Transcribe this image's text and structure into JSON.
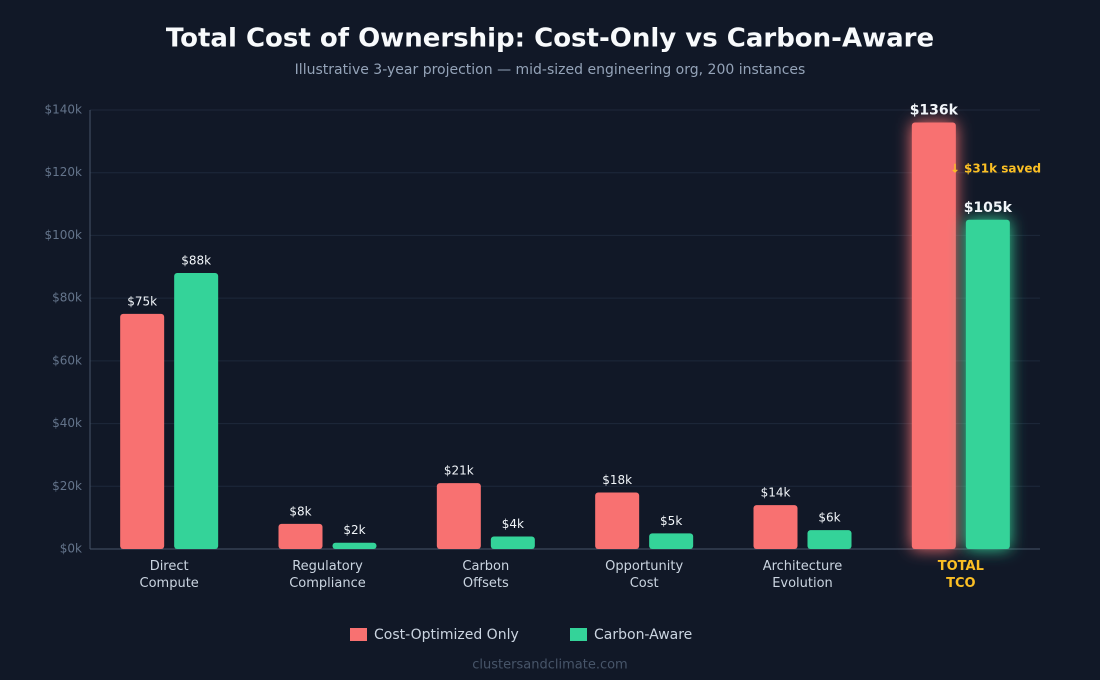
{
  "chart_data": {
    "type": "bar",
    "title": "Total Cost of Ownership: Cost-Only vs Carbon-Aware",
    "subtitle": "Illustrative 3-year projection — mid-sized engineering org, 200 instances",
    "categories": [
      "Direct\nCompute",
      "Regulatory\nCompliance",
      "Carbon\nOffsets",
      "Opportunity\nCost",
      "Architecture\nEvolution",
      "TOTAL\nTCO"
    ],
    "series": [
      {
        "name": "Cost-Optimized Only",
        "color": "#f87171",
        "values": [
          75000,
          8000,
          21000,
          18000,
          14000,
          136000
        ],
        "value_labels": [
          "$75k",
          "$8k",
          "$21k",
          "$18k",
          "$14k",
          "$136k"
        ]
      },
      {
        "name": "Carbon-Aware",
        "color": "#34d399",
        "values": [
          88000,
          2000,
          4000,
          5000,
          6000,
          105000
        ],
        "value_labels": [
          "$88k",
          "$2k",
          "$4k",
          "$5k",
          "$6k",
          "$105k"
        ]
      }
    ],
    "ylim": [
      0,
      140000
    ],
    "yticks": [
      {
        "value": 0,
        "label": "$0k"
      },
      {
        "value": 20000,
        "label": "$20k"
      },
      {
        "value": 40000,
        "label": "$40k"
      },
      {
        "value": 60000,
        "label": "$60k"
      },
      {
        "value": 80000,
        "label": "$80k"
      },
      {
        "value": 100000,
        "label": "$100k"
      },
      {
        "value": 120000,
        "label": "$120k"
      },
      {
        "value": 140000,
        "label": "$140k"
      }
    ],
    "grid": true,
    "annotation": "↓ $31k saved",
    "legend": "bottom",
    "footer": "clustersandclimate.com"
  }
}
